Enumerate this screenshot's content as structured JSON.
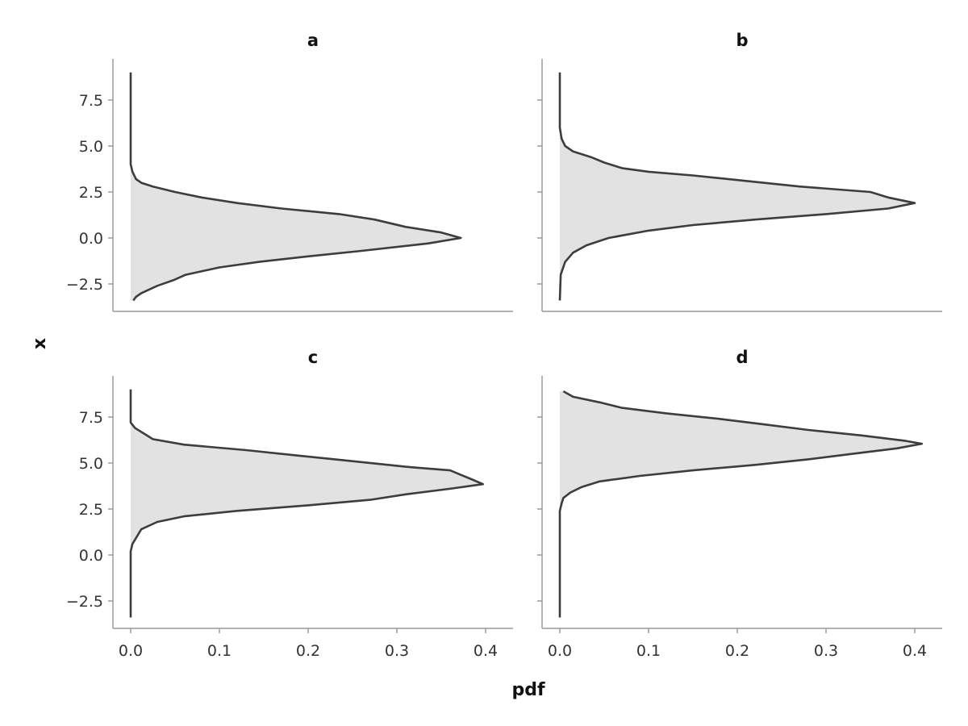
{
  "chart_data": {
    "type": "area",
    "orientation": "vertical-density",
    "xlabel": "pdf",
    "ylabel": "x",
    "xlim": [
      -0.02,
      0.43
    ],
    "ylim": [
      -4.2,
      9.6
    ],
    "xticks": [
      0.0,
      0.1,
      0.2,
      0.3,
      0.4
    ],
    "xtick_labels": [
      "0.0",
      "0.1",
      "0.2",
      "0.3",
      "0.4"
    ],
    "yticks": [
      -2.5,
      0.0,
      2.5,
      5.0,
      7.5
    ],
    "ytick_labels": [
      "−2.5",
      "0.0",
      "2.5",
      "5.0",
      "7.5"
    ],
    "grid": false,
    "fill_color": "#e2e2e2",
    "line_color": "#3d3d3d",
    "axis_color": "#9a9a9a",
    "panels": [
      {
        "title": "a",
        "points": [
          {
            "x": 9.0,
            "pdf": 0.0
          },
          {
            "x": 4.0,
            "pdf": 0.0
          },
          {
            "x": 3.6,
            "pdf": 0.002
          },
          {
            "x": 3.2,
            "pdf": 0.006
          },
          {
            "x": 3.0,
            "pdf": 0.012
          },
          {
            "x": 2.8,
            "pdf": 0.025
          },
          {
            "x": 2.5,
            "pdf": 0.05
          },
          {
            "x": 2.2,
            "pdf": 0.08
          },
          {
            "x": 1.9,
            "pdf": 0.12
          },
          {
            "x": 1.6,
            "pdf": 0.17
          },
          {
            "x": 1.3,
            "pdf": 0.235
          },
          {
            "x": 1.0,
            "pdf": 0.275
          },
          {
            "x": 0.6,
            "pdf": 0.31
          },
          {
            "x": 0.3,
            "pdf": 0.35
          },
          {
            "x": 0.0,
            "pdf": 0.372
          },
          {
            "x": -0.3,
            "pdf": 0.335
          },
          {
            "x": -0.7,
            "pdf": 0.26
          },
          {
            "x": -1.0,
            "pdf": 0.2
          },
          {
            "x": -1.3,
            "pdf": 0.145
          },
          {
            "x": -1.6,
            "pdf": 0.1
          },
          {
            "x": -2.0,
            "pdf": 0.062
          },
          {
            "x": -2.3,
            "pdf": 0.048
          },
          {
            "x": -2.6,
            "pdf": 0.03
          },
          {
            "x": -3.0,
            "pdf": 0.012
          },
          {
            "x": -3.2,
            "pdf": 0.006
          },
          {
            "x": -3.4,
            "pdf": 0.003
          }
        ]
      },
      {
        "title": "b",
        "points": [
          {
            "x": 9.0,
            "pdf": 0.0
          },
          {
            "x": 6.0,
            "pdf": 0.0
          },
          {
            "x": 5.7,
            "pdf": 0.001
          },
          {
            "x": 5.4,
            "pdf": 0.002
          },
          {
            "x": 5.0,
            "pdf": 0.006
          },
          {
            "x": 4.7,
            "pdf": 0.015
          },
          {
            "x": 4.4,
            "pdf": 0.035
          },
          {
            "x": 4.1,
            "pdf": 0.05
          },
          {
            "x": 3.8,
            "pdf": 0.07
          },
          {
            "x": 3.6,
            "pdf": 0.1
          },
          {
            "x": 3.4,
            "pdf": 0.15
          },
          {
            "x": 3.1,
            "pdf": 0.21
          },
          {
            "x": 2.8,
            "pdf": 0.27
          },
          {
            "x": 2.5,
            "pdf": 0.35
          },
          {
            "x": 2.2,
            "pdf": 0.37
          },
          {
            "x": 1.9,
            "pdf": 0.4
          },
          {
            "x": 1.6,
            "pdf": 0.37
          },
          {
            "x": 1.3,
            "pdf": 0.3
          },
          {
            "x": 1.0,
            "pdf": 0.22
          },
          {
            "x": 0.7,
            "pdf": 0.15
          },
          {
            "x": 0.4,
            "pdf": 0.1
          },
          {
            "x": 0.0,
            "pdf": 0.055
          },
          {
            "x": -0.4,
            "pdf": 0.03
          },
          {
            "x": -0.8,
            "pdf": 0.015
          },
          {
            "x": -1.3,
            "pdf": 0.006
          },
          {
            "x": -2.0,
            "pdf": 0.001
          },
          {
            "x": -3.4,
            "pdf": 0.0
          }
        ]
      },
      {
        "title": "c",
        "points": [
          {
            "x": 9.0,
            "pdf": 0.0
          },
          {
            "x": 7.2,
            "pdf": 0.0
          },
          {
            "x": 6.9,
            "pdf": 0.005
          },
          {
            "x": 6.6,
            "pdf": 0.015
          },
          {
            "x": 6.3,
            "pdf": 0.025
          },
          {
            "x": 6.0,
            "pdf": 0.06
          },
          {
            "x": 5.7,
            "pdf": 0.13
          },
          {
            "x": 5.4,
            "pdf": 0.19
          },
          {
            "x": 5.1,
            "pdf": 0.25
          },
          {
            "x": 4.8,
            "pdf": 0.31
          },
          {
            "x": 4.6,
            "pdf": 0.36
          },
          {
            "x": 4.4,
            "pdf": 0.37
          },
          {
            "x": 4.1,
            "pdf": 0.385
          },
          {
            "x": 3.85,
            "pdf": 0.397
          },
          {
            "x": 3.6,
            "pdf": 0.36
          },
          {
            "x": 3.3,
            "pdf": 0.31
          },
          {
            "x": 3.0,
            "pdf": 0.27
          },
          {
            "x": 2.7,
            "pdf": 0.2
          },
          {
            "x": 2.4,
            "pdf": 0.12
          },
          {
            "x": 2.1,
            "pdf": 0.06
          },
          {
            "x": 1.8,
            "pdf": 0.03
          },
          {
            "x": 1.4,
            "pdf": 0.012
          },
          {
            "x": 1.0,
            "pdf": 0.007
          },
          {
            "x": 0.6,
            "pdf": 0.002
          },
          {
            "x": 0.2,
            "pdf": 0.0
          },
          {
            "x": -3.4,
            "pdf": 0.0
          }
        ]
      },
      {
        "title": "d",
        "points": [
          {
            "x": 8.9,
            "pdf": 0.004
          },
          {
            "x": 8.6,
            "pdf": 0.015
          },
          {
            "x": 8.3,
            "pdf": 0.045
          },
          {
            "x": 8.0,
            "pdf": 0.07
          },
          {
            "x": 7.7,
            "pdf": 0.12
          },
          {
            "x": 7.4,
            "pdf": 0.18
          },
          {
            "x": 7.1,
            "pdf": 0.23
          },
          {
            "x": 6.8,
            "pdf": 0.28
          },
          {
            "x": 6.5,
            "pdf": 0.34
          },
          {
            "x": 6.2,
            "pdf": 0.39
          },
          {
            "x": 6.05,
            "pdf": 0.408
          },
          {
            "x": 5.8,
            "pdf": 0.38
          },
          {
            "x": 5.5,
            "pdf": 0.33
          },
          {
            "x": 5.2,
            "pdf": 0.28
          },
          {
            "x": 4.9,
            "pdf": 0.22
          },
          {
            "x": 4.6,
            "pdf": 0.15
          },
          {
            "x": 4.3,
            "pdf": 0.09
          },
          {
            "x": 4.0,
            "pdf": 0.045
          },
          {
            "x": 3.7,
            "pdf": 0.025
          },
          {
            "x": 3.4,
            "pdf": 0.012
          },
          {
            "x": 3.1,
            "pdf": 0.004
          },
          {
            "x": 2.8,
            "pdf": 0.002
          },
          {
            "x": 2.4,
            "pdf": 0.0
          },
          {
            "x": -3.4,
            "pdf": 0.0
          }
        ]
      }
    ]
  }
}
